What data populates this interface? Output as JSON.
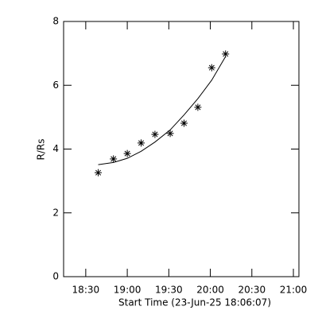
{
  "chart_data": {
    "type": "scatter",
    "xlabel": "Start Time (23-Jun-25 18:06:07)",
    "ylabel": "R/Rs",
    "xlim": [
      1094,
      1264
    ],
    "ylim": [
      0,
      8
    ],
    "xticks": [
      {
        "value": 1110,
        "label": "18:30"
      },
      {
        "value": 1140,
        "label": "19:00"
      },
      {
        "value": 1170,
        "label": "19:30"
      },
      {
        "value": 1200,
        "label": "20:00"
      },
      {
        "value": 1230,
        "label": "20:30"
      },
      {
        "value": 1260,
        "label": "21:00"
      }
    ],
    "yticks": [
      0,
      2,
      4,
      6,
      8
    ],
    "x": [
      1119,
      1130,
      1140,
      1150,
      1160,
      1171,
      1181,
      1191,
      1201,
      1211
    ],
    "series": [
      {
        "style": "asterisk",
        "color": "#000000",
        "values": [
          3.26,
          3.69,
          3.86,
          4.19,
          4.46,
          4.49,
          4.81,
          5.31,
          6.55,
          6.98
        ]
      },
      {
        "style": "line",
        "color": "#000000",
        "values": [
          3.51,
          3.58,
          3.71,
          3.93,
          4.22,
          4.6,
          5.07,
          5.58,
          6.16,
          6.9
        ]
      }
    ]
  }
}
